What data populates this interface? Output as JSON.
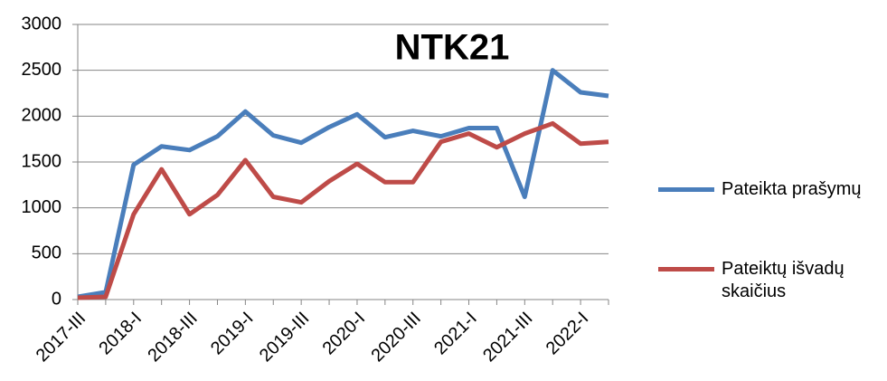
{
  "chart_data": {
    "type": "line",
    "title": "NTK21",
    "categories": [
      "2017-III",
      null,
      "2018-I",
      null,
      "2018-III",
      null,
      "2019-I",
      null,
      "2019-III",
      null,
      "2020-I",
      null,
      "2020-III",
      null,
      "2021-I",
      null,
      "2021-III",
      null,
      "2022-I",
      null
    ],
    "series": [
      {
        "name": "Pateikta prašymų",
        "color": "#4a7ebb",
        "values": [
          30,
          80,
          1470,
          1670,
          1630,
          1780,
          2050,
          1790,
          1710,
          1880,
          2020,
          1770,
          1840,
          1780,
          1870,
          1870,
          1120,
          2500,
          2260,
          2220
        ]
      },
      {
        "name": "Pateiktų išvadų skaičius",
        "color": "#be4b48",
        "values": [
          20,
          30,
          930,
          1420,
          930,
          1140,
          1520,
          1120,
          1060,
          1290,
          1480,
          1280,
          1280,
          1720,
          1810,
          1660,
          1810,
          1920,
          1700,
          1720
        ]
      }
    ],
    "ylim": [
      0,
      3000
    ],
    "yticks": [
      0,
      500,
      1000,
      1500,
      2000,
      2500,
      3000
    ],
    "grid": true,
    "legend": "right"
  }
}
